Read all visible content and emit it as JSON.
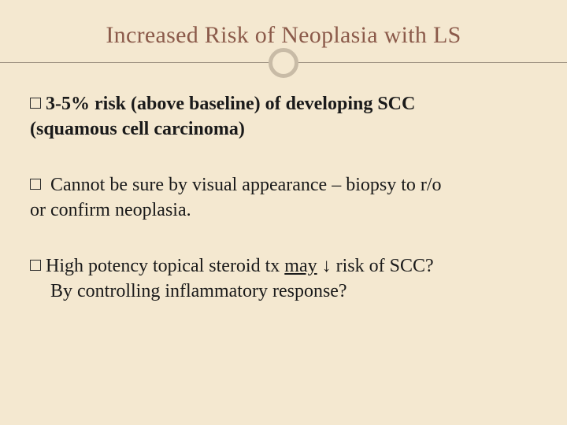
{
  "slide": {
    "title": "Increased Risk of Neoplasia with LS",
    "background_color": "#f4e8d0",
    "title_color": "#8b5a4a",
    "title_fontsize": 30,
    "body_fontsize": 24,
    "body_color": "#1a1a1a",
    "divider_color": "#9c9080",
    "circle_border_color": "#c8bba6",
    "bullets": [
      {
        "bold": true,
        "line1_prefix": " ",
        "line1_bold": "3-5% risk (above baseline) of developing SCC",
        "line2": "(squamous cell carcinoma)"
      },
      {
        "bold": false,
        "line1": " Cannot be sure by visual appearance – biopsy to r/o",
        "line2": "or confirm neoplasia."
      },
      {
        "bold": false,
        "line1_before_underline": "High potency topical steroid tx ",
        "line1_underline": "may",
        "line1_after_underline": " ↓ risk of SCC?",
        "line2": "By controlling inflammatory response?",
        "indent_line2": true
      }
    ]
  }
}
